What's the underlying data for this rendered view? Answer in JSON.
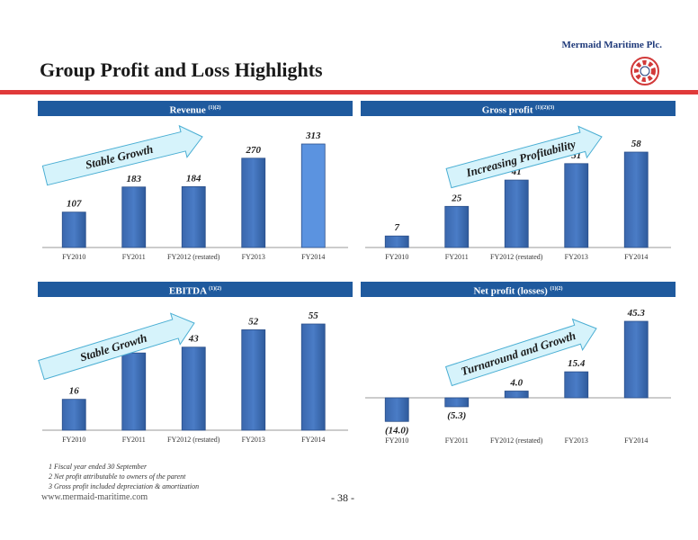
{
  "company": "Mermaid Maritime Plc.",
  "title": "Group Profit and Loss Highlights",
  "url": "www.mermaid-maritime.com",
  "page": "- 38 -",
  "footnotes": [
    "1 Fiscal year ended 30 September",
    "2 Net profit attributable to owners of the parent",
    "3 Gross profit included depreciation & amortization"
  ],
  "colors": {
    "header": "#1f5a9e",
    "bar": "#4a7cc6",
    "bar_highlight": "#5b93e0",
    "arrow": "#d6f3fb",
    "arrow_stroke": "#4aaed3",
    "rule": "#e03a3a"
  },
  "chart_data": [
    {
      "type": "bar",
      "title": "Revenue",
      "title_sup": "(1)(2)",
      "categories": [
        "FY2010",
        "FY2011",
        "FY2012 (restated)",
        "FY2013",
        "FY2014"
      ],
      "values": [
        107,
        183,
        184,
        270,
        313
      ],
      "value_labels": [
        "107",
        "183",
        "184",
        "270",
        "313"
      ],
      "ylim": [
        0,
        313
      ],
      "arrow_label": "Stable Growth",
      "highlight_last": true
    },
    {
      "type": "bar",
      "title": "Gross profit",
      "title_sup": "(1)(2)(3)",
      "categories": [
        "FY2010",
        "FY2011",
        "FY2012 (restated)",
        "FY2013",
        "FY2014"
      ],
      "values": [
        7,
        25,
        41,
        51,
        58
      ],
      "value_labels": [
        "7",
        "25",
        "41",
        "51",
        "58"
      ],
      "ylim": [
        0,
        58
      ],
      "arrow_label": "Increasing Profitability"
    },
    {
      "type": "bar",
      "title": "EBITDA",
      "title_sup": "(1)(2)",
      "categories": [
        "FY2010",
        "FY2011",
        "FY2012 (restated)",
        "FY2013",
        "FY2014"
      ],
      "values": [
        16,
        40,
        43,
        52,
        55
      ],
      "value_labels": [
        "16",
        "40",
        "43",
        "52",
        "55"
      ],
      "ylim": [
        0,
        55
      ],
      "arrow_label": "Stable Growth"
    },
    {
      "type": "bar",
      "title": "Net profit (losses)",
      "title_sup": "(1)(2)",
      "categories": [
        "FY2010",
        "FY2011",
        "FY2012 (restated)",
        "FY2013",
        "FY2014"
      ],
      "values": [
        -14.0,
        -5.3,
        4.0,
        15.4,
        45.3
      ],
      "value_labels": [
        "(14.0)",
        "(5.3)",
        "4.0",
        "15.4",
        "45.3"
      ],
      "ylim": [
        -14.0,
        45.3
      ],
      "arrow_label": "Turnaround and Growth"
    }
  ]
}
